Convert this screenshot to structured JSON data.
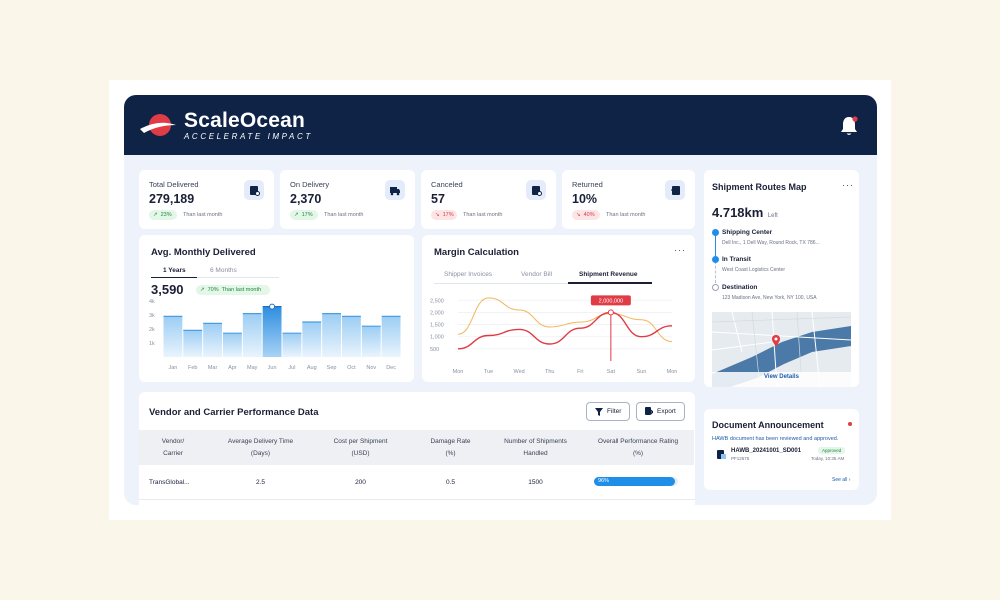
{
  "brand": {
    "name": "ScaleOcean",
    "tagline": "ACCELERATE IMPACT"
  },
  "colors": {
    "navy": "#0f2346",
    "accent_blue": "#1f8ee9",
    "bar_blue": "#8cc6f2",
    "up_green": "#1f8a3b",
    "down_red": "#d33a47",
    "line_red": "#e03c45",
    "line_orange": "#f0b85a"
  },
  "icons": {
    "bell": "bell-icon",
    "trend_up": "trend-up-icon",
    "trend_down": "trend-down-icon",
    "filter": "filter-icon",
    "export": "export-icon"
  },
  "stats": [
    {
      "label": "Total Delivered",
      "value": "279,189",
      "change": "23%",
      "direction": "up",
      "note": "Than last month"
    },
    {
      "label": "On Delivery",
      "value": "2,370",
      "change": "17%",
      "direction": "up",
      "note": "Than last month"
    },
    {
      "label": "Canceled",
      "value": "57",
      "change": "17%",
      "direction": "down",
      "note": "Than last month"
    },
    {
      "label": "Returned",
      "value": "10%",
      "change": "40%",
      "direction": "down",
      "note": "Than last month"
    }
  ],
  "monthly": {
    "title": "Avg. Monthly Delivered",
    "tabs": [
      "1 Years",
      "6 Months"
    ],
    "value": "3,590",
    "change": "70%",
    "note": "Than last month"
  },
  "margin": {
    "title": "Margin Calculation",
    "tabs": [
      "Shipper Invoices",
      "Vendor Bill",
      "Shipment Revenue"
    ],
    "tooltip": "2,000,000"
  },
  "chart_data": [
    {
      "type": "bar",
      "categories": [
        "Jan",
        "Feb",
        "Mar",
        "Apr",
        "May",
        "Jun",
        "Jul",
        "Aug",
        "Sep",
        "Oct",
        "Nov",
        "Dec"
      ],
      "values": [
        2.9,
        1.9,
        2.4,
        1.7,
        3.1,
        3.6,
        1.7,
        2.5,
        3.1,
        2.9,
        2.2,
        2.9
      ],
      "yticks": [
        "4k",
        "3k",
        "2k",
        "1k"
      ],
      "ylim": [
        0,
        4
      ],
      "highlight": "Jun"
    },
    {
      "type": "line",
      "categories": [
        "Mon",
        "Tue",
        "Wed",
        "Thu",
        "Fri",
        "Sat",
        "Sun",
        "Mon"
      ],
      "yticks": [
        "2,500",
        "2,000",
        "1,500",
        "1,000",
        "500"
      ],
      "ylim": [
        0,
        2800
      ],
      "series": [
        {
          "values": [
            500,
            1050,
            1300,
            700,
            1350,
            2000,
            1000,
            1450
          ]
        },
        {
          "values": [
            1100,
            2600,
            2100,
            1400,
            1600,
            1950,
            1700,
            800
          ]
        }
      ],
      "highlight": {
        "category_index": 5,
        "value": 2000
      }
    }
  ],
  "routes": {
    "title": "Shipment Routes Map",
    "distance": "4.718km",
    "distance_suffix": "Left",
    "stops": [
      {
        "label": "Shipping Center",
        "detail": "Dell Inc., 1 Dell Way, Round Rock, TX 786..."
      },
      {
        "label": "In Transit",
        "detail": "West Coast Logistics Center"
      },
      {
        "label": "Destination",
        "detail": "123 Madison Ave, New York, NY 100, USA"
      }
    ],
    "view_details": "View Details"
  },
  "announcement": {
    "title": "Document Announcement",
    "message": "HAWB document has been reviewed and approved.",
    "doc_name": "HAWB_20241001_SD001",
    "doc_id": "PF12675",
    "status": "Approved",
    "time": "Today, 10:35 AM",
    "see_all": "See all"
  },
  "performance": {
    "title": "Vendor and Carrier Performance Data",
    "filter_label": "Filter",
    "export_label": "Export",
    "columns": [
      {
        "line1": "Vendor/",
        "line2": "Carrier"
      },
      {
        "line1": "Average Delivery Time",
        "line2": "(Days)"
      },
      {
        "line1": "Cost per Shipment",
        "line2": "(USD)"
      },
      {
        "line1": "Damage Rate",
        "line2": "(%)"
      },
      {
        "line1": "Number of Shipments",
        "line2": "Handled"
      },
      {
        "line1": "Overall Performance Rating",
        "line2": "(%)"
      }
    ],
    "rows": [
      {
        "vendor": "TransGlobal...",
        "delivery_time": "2.5",
        "cost": "200",
        "damage": "0.5",
        "shipments": "1500",
        "rating": "96%",
        "rating_fraction": 0.96
      }
    ]
  }
}
